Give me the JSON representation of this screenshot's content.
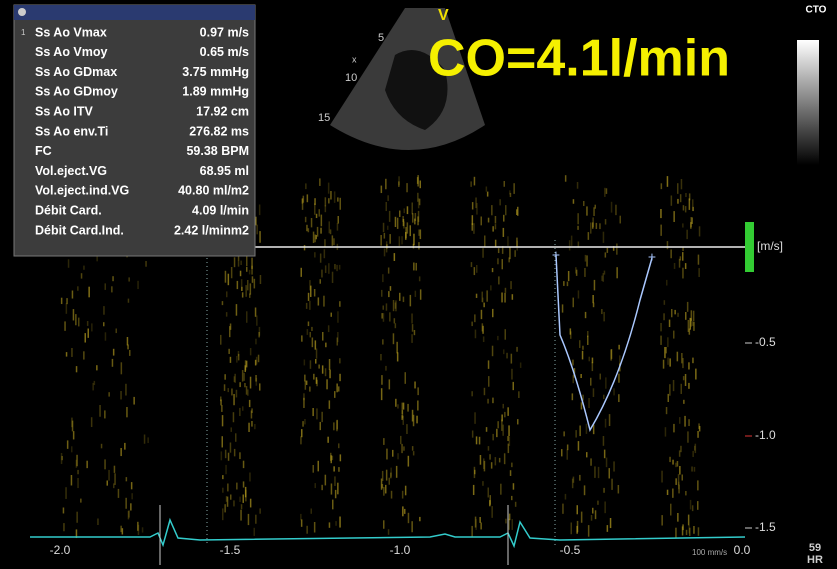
{
  "measurements": {
    "index": "1",
    "rows": [
      [
        "Ss Ao Vmax",
        "0.97 m/s"
      ],
      [
        "Ss Ao Vmoy",
        "0.65 m/s"
      ],
      [
        "Ss Ao GDmax",
        "3.75 mmHg"
      ],
      [
        "Ss Ao GDmoy",
        "1.89 mmHg"
      ],
      [
        "Ss Ao ITV",
        "17.92 cm"
      ],
      [
        "Ss Ao env.Ti",
        "276.82 ms"
      ],
      [
        "FC",
        "59.38 BPM"
      ],
      [
        "Vol.eject.VG",
        "68.95 ml"
      ],
      [
        "Vol.eject.ind.VG",
        "40.80 ml/m2"
      ],
      [
        "Débit Card.",
        "4.09 l/min"
      ],
      [
        "Débit Card.Ind.",
        "2.42 l/minm2"
      ]
    ]
  },
  "overlay": {
    "title": "CO=4.1l/min",
    "corner": "CTO",
    "probe_mark": "V",
    "depths": [
      "5",
      "10",
      "15"
    ],
    "focus": "x"
  },
  "doppler": {
    "unit": "[m/s]",
    "velocity_labels": [
      "-0.5",
      "-1.0",
      "-1.5"
    ],
    "time_labels": [
      "-2.0",
      "-1.5",
      "-1.0",
      "-0.5",
      "0.0"
    ],
    "sweep": "100 mm/s",
    "hr_value": "59",
    "hr_label": "HR"
  }
}
